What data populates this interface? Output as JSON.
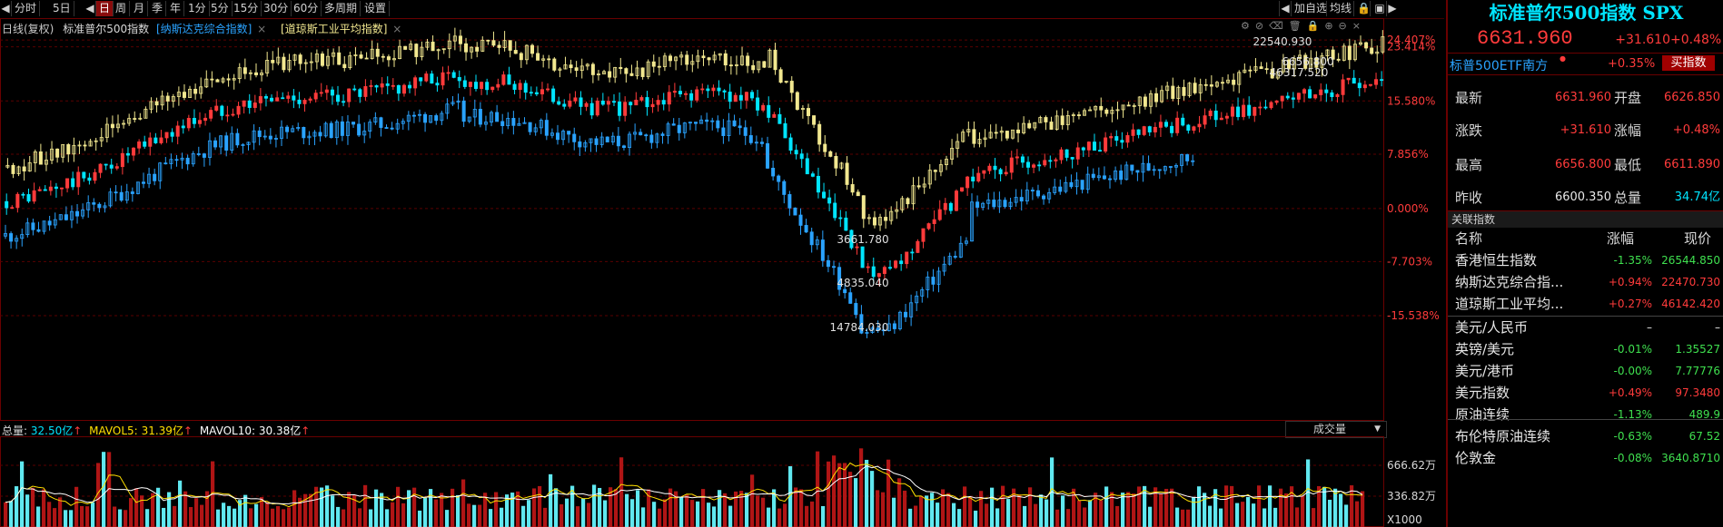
{
  "toolbar": {
    "items": [
      "分时",
      "5日",
      "日",
      "周",
      "月",
      "季",
      "年",
      "1分",
      "5分",
      "15分",
      "30分",
      "60分",
      "多周期",
      "设置"
    ],
    "active_index": 2,
    "right_items": [
      "加自选",
      "均线"
    ]
  },
  "chart_header": {
    "period_label": "日线(复权)",
    "main_index": "标准普尔500指数",
    "compare_1": "[纳斯达克综合指数]",
    "compare_2": "[道琼斯工业平均指数]",
    "close_mark": "×"
  },
  "chart_data": {
    "type": "candlestick-comparison",
    "y_axis_ticks": [
      "24.407%",
      "23.414%",
      "15.580%",
      "7.856%",
      "0.000%",
      "-7.703%",
      "-15.538%"
    ],
    "y_axis_values": [
      24.407,
      23.414,
      15.58,
      7.856,
      0.0,
      -7.703,
      -15.538
    ],
    "series": [
      {
        "name": "标准普尔500指数",
        "color": "#2aa3ff"
      },
      {
        "name": "纳斯达克综合指数",
        "color": "#ffffff"
      },
      {
        "name": "道琼斯工业平均指数",
        "color": "#f2e890"
      }
    ],
    "annotations": [
      "22540.930",
      "6656.800",
      "46317.520",
      "3661.780",
      "4835.040",
      "14784.030"
    ],
    "volume": {
      "total_label": "总量:",
      "total_value": "32.50亿",
      "mavol5_label": "MAVOL5:",
      "mavol5_value": "31.39亿",
      "mavol10_label": "MAVOL10:",
      "mavol10_value": "30.38亿",
      "arrow": "↑",
      "axis_ticks": [
        "666.62万",
        "336.82万"
      ],
      "unit": "X1000",
      "dropdown": "成交量"
    }
  },
  "panel": {
    "title": "标准普尔500指数 SPX",
    "price": "6631.960",
    "change": "+31.610",
    "change_pct": "+0.48%",
    "etf_name": "标普500ETF南方",
    "etf_change": "+0.35%",
    "buy_label": "买指数",
    "rows": [
      {
        "k1": "最新",
        "v1": "6631.960",
        "k2": "开盘",
        "v2": "6626.850"
      },
      {
        "k1": "涨跌",
        "v1": "+31.610",
        "k2": "涨幅",
        "v2": "+0.48%"
      },
      {
        "k1": "最高",
        "v1": "6656.800",
        "k2": "最低",
        "v2": "6611.890"
      },
      {
        "k1": "昨收",
        "v1": "6600.350",
        "k2": "总量",
        "v2": "34.74亿"
      }
    ],
    "related_title": "关联指数",
    "cols": {
      "name": "名称",
      "chg": "涨幅",
      "price": "现价"
    },
    "related": [
      {
        "name": "香港恒生指数",
        "chg": "-1.35%",
        "price": "26544.850",
        "dir": "down"
      },
      {
        "name": "纳斯达克综合指...",
        "chg": "+0.94%",
        "price": "22470.730",
        "dir": "up"
      },
      {
        "name": "道琼斯工业平均...",
        "chg": "+0.27%",
        "price": "46142.420",
        "dir": "up"
      },
      {
        "name": "美元/人民币",
        "chg": "–",
        "price": "–",
        "dir": "flat"
      },
      {
        "name": "英镑/美元",
        "chg": "-0.01%",
        "price": "1.35527",
        "dir": "down"
      },
      {
        "name": "美元/港币",
        "chg": "-0.00%",
        "price": "7.77776",
        "dir": "down"
      },
      {
        "name": "美元指数",
        "chg": "+0.49%",
        "price": "97.3480",
        "dir": "up"
      },
      {
        "name": "原油连续",
        "chg": "-1.13%",
        "price": "489.9",
        "dir": "down"
      },
      {
        "name": "布伦特原油连续",
        "chg": "-0.63%",
        "price": "67.52",
        "dir": "down"
      },
      {
        "name": "伦敦金",
        "chg": "-0.08%",
        "price": "3640.8710",
        "dir": "down"
      }
    ]
  },
  "colors": {
    "up": "#ff3b3b",
    "down": "#3fe04f",
    "accent": "#00e5ff",
    "grid": "#5a0000"
  }
}
